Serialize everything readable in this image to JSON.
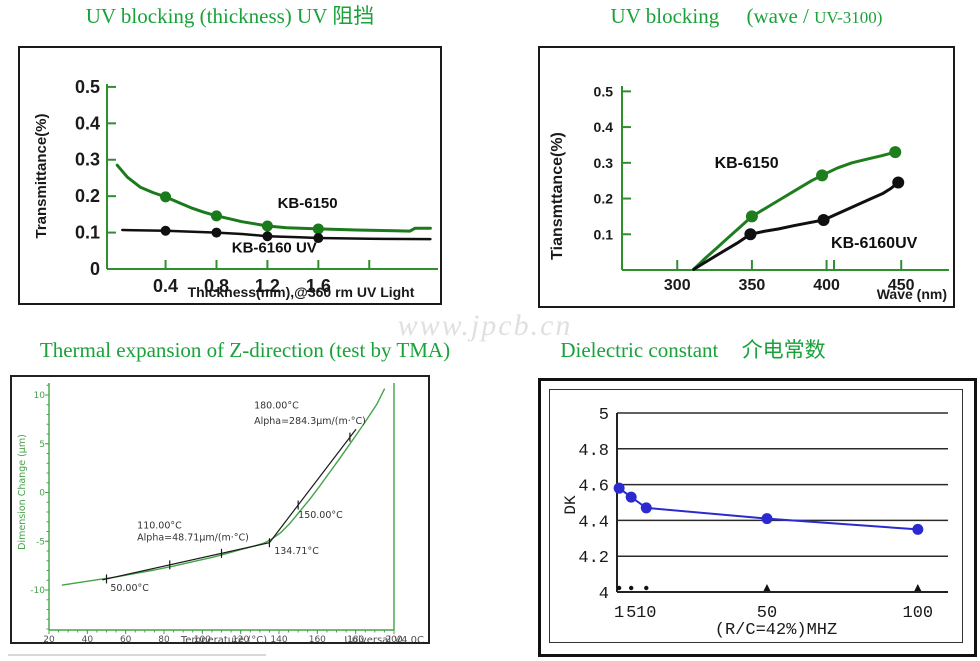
{
  "page": {
    "background": "#ffffff",
    "watermark": "www.jpcb.cn"
  },
  "chart_data": [
    {
      "id": "uv-thickness",
      "type": "line",
      "title": "UV blocking (thickness) UV 阻挡",
      "xlabel": "Thickness(mm),@360 rm UV Light",
      "ylabel": "Transmittance(%)",
      "xlim": [
        -0.06,
        2.54
      ],
      "ylim": [
        0,
        0.508
      ],
      "grid": false,
      "legend_position": "inline-labels",
      "x_ticks": [
        {
          "v": 0.4,
          "label": "0.4"
        },
        {
          "v": 0.8,
          "label": "0.8"
        },
        {
          "v": 1.2,
          "label": "1.2"
        },
        {
          "v": 1.6,
          "label": "1.6"
        },
        {
          "v": 2.0,
          "label": ""
        }
      ],
      "y_ticks": [
        {
          "v": 0,
          "label": "0"
        },
        {
          "v": 0.1,
          "label": "0.1"
        },
        {
          "v": 0.2,
          "label": "0.2"
        },
        {
          "v": 0.3,
          "label": "0.3"
        },
        {
          "v": 0.4,
          "label": "0.4"
        },
        {
          "v": 0.5,
          "label": "0.5"
        }
      ],
      "series": [
        {
          "name": "KB-6150",
          "color": "#1b7a1b",
          "width": 3,
          "points": [
            [
              0.02,
              0.285
            ],
            [
              0.1,
              0.252
            ],
            [
              0.2,
              0.225
            ],
            [
              0.3,
              0.21
            ],
            [
              0.4,
              0.198
            ],
            [
              0.5,
              0.183
            ],
            [
              0.6,
              0.168
            ],
            [
              0.7,
              0.156
            ],
            [
              0.8,
              0.146
            ],
            [
              0.9,
              0.138
            ],
            [
              1.0,
              0.13
            ],
            [
              1.1,
              0.124
            ],
            [
              1.2,
              0.118
            ],
            [
              1.35,
              0.113
            ],
            [
              1.6,
              0.11
            ],
            [
              1.9,
              0.107
            ],
            [
              2.2,
              0.105
            ],
            [
              2.32,
              0.104
            ],
            [
              2.36,
              0.112
            ],
            [
              2.48,
              0.112
            ]
          ],
          "marker_x": [
            0.4,
            0.8,
            1.2,
            1.6
          ],
          "marker_r": 5.5
        },
        {
          "name": "KB-6160 UV",
          "color": "#101010",
          "width": 2.5,
          "points": [
            [
              0.06,
              0.107
            ],
            [
              0.4,
              0.105
            ],
            [
              0.8,
              0.1
            ],
            [
              1.0,
              0.096
            ],
            [
              1.2,
              0.09
            ],
            [
              1.45,
              0.087
            ],
            [
              1.6,
              0.085
            ],
            [
              2.0,
              0.083
            ],
            [
              2.48,
              0.082
            ]
          ],
          "marker_x": [
            0.4,
            0.8,
            1.2,
            1.6
          ],
          "marker_r": 5
        }
      ],
      "annotations": [
        {
          "text": "KB-6150",
          "x": 1.28,
          "y": 0.168,
          "size": 15,
          "bold": true,
          "color": "#101010"
        },
        {
          "text": "KB-6160 UV",
          "x": 0.92,
          "y": 0.045,
          "size": 15,
          "bold": true,
          "color": "#101010"
        }
      ]
    },
    {
      "id": "uv-wave",
      "type": "line",
      "title": "UV blocking (wave / UV-3100)",
      "title_parts": {
        "main": "UV blocking",
        "mid": "(wave /",
        "small": "UV-3100)"
      },
      "xlabel": "Wave (nm)",
      "ylabel": "Tiansmttance(%)",
      "xlim": [
        263,
        482
      ],
      "ylim": [
        0,
        0.515
      ],
      "grid": false,
      "legend_position": "inline-labels",
      "x_ticks": [
        {
          "v": 300,
          "label": "300"
        },
        {
          "v": 350,
          "label": "350"
        },
        {
          "v": 400,
          "label": "400"
        },
        {
          "v": 405,
          "label": ""
        },
        {
          "v": 450,
          "label": "450"
        }
      ],
      "y_ticks": [
        {
          "v": 0.1,
          "label": "0.1"
        },
        {
          "v": 0.2,
          "label": "0.2"
        },
        {
          "v": 0.3,
          "label": "0.3"
        },
        {
          "v": 0.4,
          "label": "0.4"
        },
        {
          "v": 0.5,
          "label": "0.5"
        }
      ],
      "series": [
        {
          "name": "KB-6150",
          "color": "#1e7e1e",
          "width": 3,
          "points": [
            [
              311,
              0.002
            ],
            [
              318,
              0.03
            ],
            [
              326,
              0.06
            ],
            [
              334,
              0.09
            ],
            [
              342,
              0.12
            ],
            [
              350,
              0.15
            ],
            [
              360,
              0.175
            ],
            [
              370,
              0.2
            ],
            [
              380,
              0.225
            ],
            [
              390,
              0.25
            ],
            [
              397,
              0.265
            ],
            [
              407,
              0.285
            ],
            [
              417,
              0.3
            ],
            [
              427,
              0.31
            ],
            [
              437,
              0.32
            ],
            [
              446,
              0.33
            ]
          ],
          "marker_x": [
            350,
            397,
            446
          ],
          "marker_r": 6
        },
        {
          "name": "KB-6160UV",
          "color": "#101010",
          "width": 3,
          "points": [
            [
              311,
              0.002
            ],
            [
              320,
              0.025
            ],
            [
              330,
              0.05
            ],
            [
              340,
              0.075
            ],
            [
              349,
              0.1
            ],
            [
              358,
              0.108
            ],
            [
              368,
              0.115
            ],
            [
              378,
              0.124
            ],
            [
              388,
              0.132
            ],
            [
              398,
              0.14
            ],
            [
              406,
              0.155
            ],
            [
              414,
              0.17
            ],
            [
              422,
              0.185
            ],
            [
              430,
              0.2
            ],
            [
              438,
              0.215
            ],
            [
              443,
              0.228
            ],
            [
              448,
              0.245
            ]
          ],
          "marker_x": [
            349,
            398,
            448
          ],
          "marker_r": 6
        }
      ],
      "annotations": [
        {
          "text": "KB-6150",
          "x": 325,
          "y": 0.285,
          "size": 16,
          "bold": true,
          "color": "#101010"
        },
        {
          "text": "KB-6160UV",
          "x": 403,
          "y": 0.062,
          "size": 16,
          "bold": true,
          "color": "#101010"
        }
      ]
    },
    {
      "id": "tma",
      "type": "line",
      "title": "Thermal expansion of Z-direction (test by TMA)",
      "xlabel": "Temperature (°C)",
      "ylabel": "Dimension Change (µm)",
      "corner_label": "Universal V4.0C",
      "xlim": [
        20,
        200
      ],
      "ylim": [
        -14.1,
        11.23
      ],
      "grid": false,
      "x_ticks": [
        {
          "v": 20,
          "label": "20"
        },
        {
          "v": 40,
          "label": "40"
        },
        {
          "v": 60,
          "label": "60"
        },
        {
          "v": 80,
          "label": "80"
        },
        {
          "v": 100,
          "label": "100"
        },
        {
          "v": 120,
          "label": "120"
        },
        {
          "v": 140,
          "label": "140"
        },
        {
          "v": 160,
          "label": "160"
        },
        {
          "v": 180,
          "label": "180"
        },
        {
          "v": 200,
          "label": "200"
        }
      ],
      "y_ticks": [
        {
          "v": -10,
          "label": "-10"
        },
        {
          "v": -5,
          "label": "-5"
        },
        {
          "v": 0,
          "label": "0"
        },
        {
          "v": 5,
          "label": "5"
        },
        {
          "v": 10,
          "label": "10"
        }
      ],
      "series": [
        {
          "name": "sample-curve",
          "color": "#45a349",
          "width": 1.4,
          "points": [
            [
              27,
              -9.5
            ],
            [
              35,
              -9.25
            ],
            [
              45,
              -8.95
            ],
            [
              55,
              -8.65
            ],
            [
              65,
              -8.3
            ],
            [
              75,
              -7.95
            ],
            [
              85,
              -7.55
            ],
            [
              95,
              -7.1
            ],
            [
              105,
              -6.65
            ],
            [
              112,
              -6.3
            ],
            [
              120,
              -5.85
            ],
            [
              127,
              -5.5
            ],
            [
              132,
              -5.2
            ],
            [
              136,
              -4.8
            ],
            [
              141,
              -4.1
            ],
            [
              146,
              -3.1
            ],
            [
              151,
              -1.9
            ],
            [
              156,
              -0.7
            ],
            [
              161,
              0.6
            ],
            [
              166,
              1.95
            ],
            [
              171,
              3.3
            ],
            [
              176,
              4.7
            ],
            [
              181,
              6.1
            ],
            [
              186,
              7.55
            ],
            [
              191,
              9.05
            ],
            [
              195,
              10.6
            ]
          ]
        },
        {
          "name": "tangent-low",
          "color": "#1a1a1a",
          "width": 1.2,
          "points": [
            [
              48,
              -8.95
            ],
            [
              135,
              -5.15
            ]
          ],
          "cross_x": [
            50,
            83,
            110,
            135
          ]
        },
        {
          "name": "tangent-high",
          "color": "#1a1a1a",
          "width": 1.2,
          "points": [
            [
              135,
              -5.15
            ],
            [
              180,
              6.45
            ]
          ],
          "cross_x": [
            150,
            177
          ]
        }
      ],
      "annotations": [
        {
          "text": "180.00°C",
          "x": 127,
          "y": 8.6,
          "size": 9.5,
          "bold": false,
          "color": "#333333"
        },
        {
          "text": "Alpha=284.3µm/(m·°C)",
          "x": 127,
          "y": 7.0,
          "size": 9.5,
          "bold": false,
          "color": "#333333"
        },
        {
          "text": "110.00°C",
          "x": 66,
          "y": -3.7,
          "size": 9.5,
          "bold": false,
          "color": "#333333"
        },
        {
          "text": "Alpha=48.71µm/(m·°C)",
          "x": 66,
          "y": -4.9,
          "size": 9.5,
          "bold": false,
          "color": "#333333"
        },
        {
          "text": "150.00°C",
          "x": 150,
          "y": -2.6,
          "size": 9.5,
          "bold": false,
          "color": "#333333"
        },
        {
          "text": "134.71°C",
          "x": 137.5,
          "y": -6.3,
          "size": 9.5,
          "bold": false,
          "color": "#333333"
        },
        {
          "text": "50.00°C",
          "x": 52,
          "y": -10.1,
          "size": 9.5,
          "bold": false,
          "color": "#333333"
        }
      ]
    },
    {
      "id": "dk",
      "type": "line",
      "title": "Dielectric constant 介电常数",
      "title_en": "Dielectric constant",
      "title_cn": "介电常数",
      "xlabel": "(R/C=42%)MHZ",
      "ylabel": "DK",
      "xlim": [
        0.3,
        110
      ],
      "ylim": [
        4,
        5
      ],
      "grid": true,
      "x_ticks": [
        {
          "v": 1,
          "label": "1",
          "mark": "dot"
        },
        {
          "v": 5,
          "label": "5",
          "mark": "dot"
        },
        {
          "v": 10,
          "label": "10",
          "mark": "dot"
        },
        {
          "v": 50,
          "label": "50",
          "mark": "tri"
        },
        {
          "v": 100,
          "label": "100",
          "mark": "tri"
        }
      ],
      "y_ticks": [
        {
          "v": 4,
          "label": "4"
        },
        {
          "v": 4.2,
          "label": "4.2"
        },
        {
          "v": 4.4,
          "label": "4.4"
        },
        {
          "v": 4.6,
          "label": "4.6"
        },
        {
          "v": 4.8,
          "label": "4.8"
        },
        {
          "v": 5,
          "label": "5"
        }
      ],
      "series": [
        {
          "name": "DK",
          "color": "#2a2ad0",
          "width": 2,
          "points": [
            [
              1,
              4.58
            ],
            [
              5,
              4.53
            ],
            [
              10,
              4.47
            ],
            [
              50,
              4.41
            ],
            [
              100,
              4.35
            ]
          ],
          "marker_x": [
            1,
            5,
            10,
            50,
            100
          ],
          "marker_r": 5.5
        }
      ]
    }
  ]
}
